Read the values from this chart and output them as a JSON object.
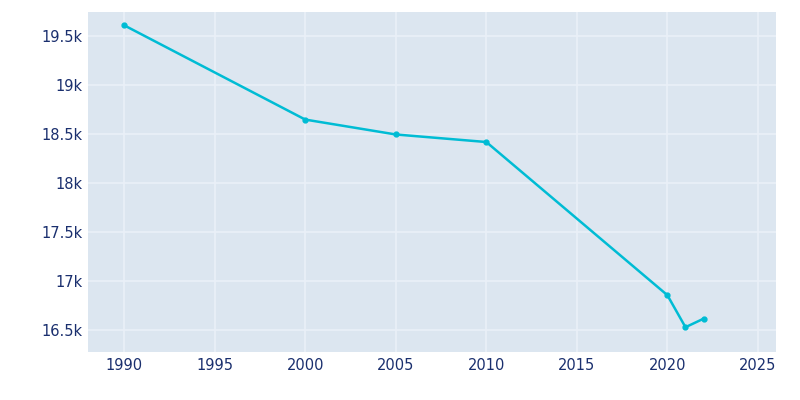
{
  "years": [
    1990,
    2000,
    2005,
    2010,
    2020,
    2021,
    2022
  ],
  "population": [
    19614,
    18652,
    18500,
    18423,
    16860,
    16533,
    16620
  ],
  "line_color": "#00bcd4",
  "plot_bg_color": "#dce6f0",
  "fig_bg_color": "#ffffff",
  "grid_color": "#eaf0f8",
  "text_color": "#1a2f6e",
  "xlim": [
    1988,
    2026
  ],
  "ylim": [
    16280,
    19750
  ],
  "xticks": [
    1990,
    1995,
    2000,
    2005,
    2010,
    2015,
    2020,
    2025
  ],
  "yticks": [
    16500,
    17000,
    17500,
    18000,
    18500,
    19000,
    19500
  ],
  "ytick_labels": [
    "16.5k",
    "17k",
    "17.5k",
    "18k",
    "18.5k",
    "19k",
    "19.5k"
  ],
  "linewidth": 1.8,
  "marker": "o",
  "markersize": 3.5
}
